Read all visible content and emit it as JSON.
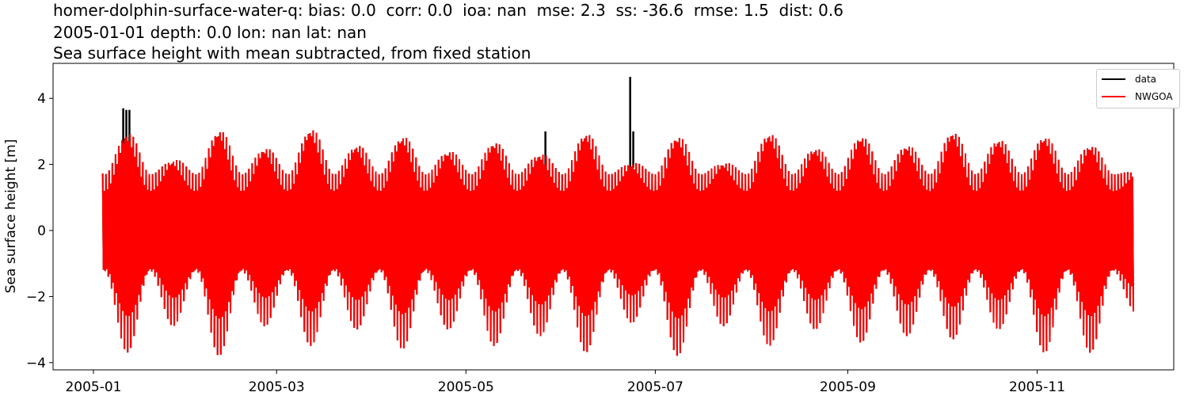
{
  "titles": [
    "homer-dolphin-surface-water-q: bias: 0.0  corr: 0.0  ioa: nan  mse: 2.3  ss: -36.6  rmse: 1.5  dist: 0.6",
    "2005-01-01 depth: 0.0 lon: nan lat: nan",
    "Sea surface height with mean subtracted, from fixed station"
  ],
  "chart_data": {
    "type": "line",
    "ylabel": "Sea surface height [m]",
    "xlabel": "",
    "xlim_days_since_2005_01_01": [
      -13,
      348
    ],
    "ylim": [
      -4.22,
      5.06
    ],
    "xticks": [
      {
        "day": 0,
        "label": "2005-01"
      },
      {
        "day": 59,
        "label": "2005-03"
      },
      {
        "day": 120,
        "label": "2005-05"
      },
      {
        "day": 181,
        "label": "2005-07"
      },
      {
        "day": 243,
        "label": "2005-09"
      },
      {
        "day": 304,
        "label": "2005-11"
      }
    ],
    "yticks": [
      4,
      2,
      0,
      -2,
      -4
    ],
    "legend": {
      "position": "top-right",
      "entries": [
        {
          "name": "data",
          "color": "#000000"
        },
        {
          "name": "NWGOA",
          "color": "#ff0000"
        }
      ]
    },
    "time_range_days": [
      3,
      335
    ],
    "tidal_period_days": 0.5175,
    "envelope": {
      "spring_days_start": 11,
      "spring_interval_days": 14.77,
      "spring_high": [
        3.3,
        2.4,
        3.4,
        2.8,
        3.45,
        2.9,
        3.2,
        2.7,
        3.0,
        2.6,
        3.3,
        2.3,
        3.2,
        2.3,
        3.3,
        2.8,
        3.2,
        2.9,
        3.35,
        3.1,
        3.2,
        2.9,
        2.0
      ],
      "spring_low": [
        -3.7,
        -2.9,
        -3.8,
        -2.9,
        -3.5,
        -3.0,
        -3.6,
        -3.0,
        -3.5,
        -3.2,
        -3.7,
        -2.8,
        -3.8,
        -2.9,
        -3.5,
        -3.0,
        -3.4,
        -3.2,
        -3.3,
        -3.0,
        -3.7,
        -3.7,
        -2.5
      ],
      "neap_high": 1.7,
      "neap_low": -1.4
    },
    "series": [
      {
        "name": "data",
        "color": "#000000",
        "spikes": [
          {
            "day": 9.6,
            "value": 3.7
          },
          {
            "day": 10.6,
            "value": 3.65
          },
          {
            "day": 11.6,
            "value": 3.65
          },
          {
            "day": 145.6,
            "value": 3.0
          },
          {
            "day": 172.9,
            "value": 4.65
          },
          {
            "day": 173.9,
            "value": 3.0
          }
        ]
      },
      {
        "name": "NWGOA",
        "color": "#ff0000"
      }
    ]
  }
}
